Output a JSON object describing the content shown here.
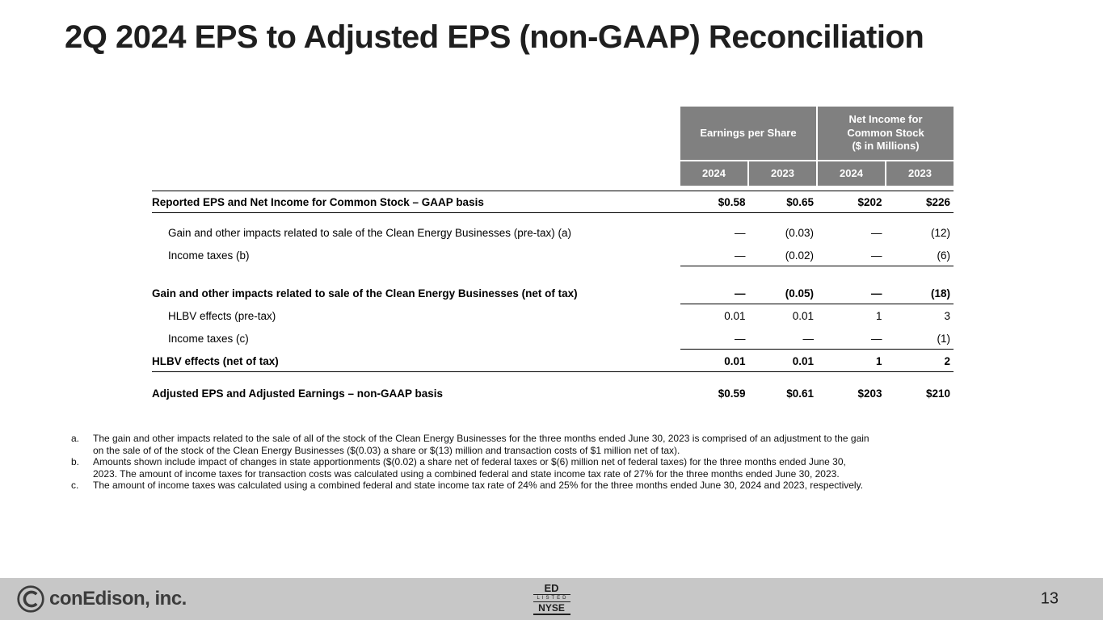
{
  "slide": {
    "title": "2Q 2024 EPS to Adjusted EPS (non-GAAP) Reconciliation",
    "page_number": "13"
  },
  "table": {
    "group_headers": [
      {
        "label": "Earnings per Share"
      },
      {
        "label": "Net Income for\nCommon Stock\n($ in Millions)"
      }
    ],
    "year_headers": [
      "2024",
      "2023",
      "2024",
      "2023"
    ],
    "rows": [
      {
        "label": "Reported EPS and Net Income for Common Stock – GAAP basis",
        "bold": true,
        "indent": 0,
        "values": [
          "$0.58",
          "$0.65",
          "$202",
          "$226"
        ],
        "rule_above": "full",
        "rule_below": "full"
      },
      {
        "label": "Gain and other impacts related to sale of the Clean Energy Businesses (pre-tax) (a)",
        "bold": false,
        "indent": 1,
        "values": [
          "—",
          "(0.03)",
          "—",
          "(12)"
        ],
        "gap_before": 10
      },
      {
        "label": "Income taxes (b)",
        "bold": false,
        "indent": 1,
        "values": [
          "—",
          "(0.02)",
          "—",
          "(6)"
        ],
        "rule_below": "cols"
      },
      {
        "label": "Gain and other impacts related to sale of the Clean Energy Businesses (net of tax)",
        "bold": true,
        "indent": 0,
        "values": [
          "—",
          "(0.05)",
          "—",
          "(18)"
        ],
        "rule_below": "cols",
        "gap_before": 19
      },
      {
        "label": "HLBV effects (pre-tax)",
        "bold": false,
        "indent": 1,
        "values": [
          "0.01",
          "0.01",
          "1",
          "3"
        ]
      },
      {
        "label": "Income taxes (c)",
        "bold": false,
        "indent": 1,
        "values": [
          "—",
          "—",
          "—",
          "(1)"
        ],
        "rule_below": "cols"
      },
      {
        "label": "HLBV effects (net of tax)",
        "bold": true,
        "indent": 0,
        "values": [
          "0.01",
          "0.01",
          "1",
          "2"
        ],
        "rule_below": "full"
      },
      {
        "label": "Adjusted EPS and Adjusted Earnings  – non-GAAP basis",
        "bold": true,
        "indent": 0,
        "values": [
          "$0.59",
          "$0.61",
          "$203",
          "$210"
        ],
        "gap_before": 12
      }
    ]
  },
  "footnotes": [
    {
      "marker": "a.",
      "text": "The gain and other impacts related to the sale of all of the stock of the Clean Energy Businesses for the three months ended June 30, 2023 is comprised of an adjustment to the gain on the sale of of the stock of the Clean Energy Businesses ($(0.03) a share or $(13) million and transaction costs of $1 million net of tax)."
    },
    {
      "marker": "b.",
      "text": "Amounts shown include impact of changes in state apportionments ($(0.02) a share net of federal taxes or $(6) million net of federal taxes) for the three months ended June 30, 2023. The amount of income taxes for transaction costs was calculated using a combined federal and state income tax rate of 27% for the three months ended June 30, 2023."
    },
    {
      "marker": "c.",
      "text": "The amount  of income taxes was calculated using a combined federal and state income tax rate of 24% and 25% for the three months ended June 30, 2024 and 2023, respectively."
    }
  ],
  "footer": {
    "company": "conEdison, inc.",
    "nyse_ticker": "ED",
    "nyse_listed": "LISTED",
    "nyse_name": "NYSE"
  },
  "colors": {
    "header_gray": "#808080",
    "footer_gray": "#c7c7c7",
    "text": "#000000"
  }
}
